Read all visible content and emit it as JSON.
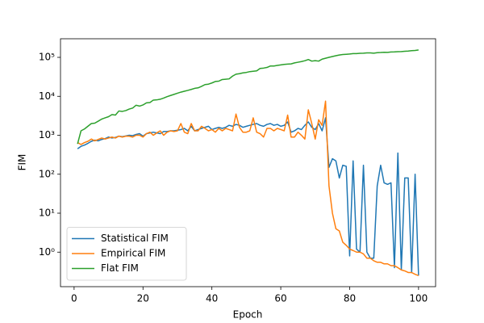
{
  "chart_data": {
    "type": "line",
    "xlabel": "Epoch",
    "ylabel": "FIM",
    "xlim": [
      -3.95,
      104.95
    ],
    "xticks": [
      0,
      20,
      40,
      60,
      80,
      100
    ],
    "ylim": [
      0.13,
      300000
    ],
    "yscale": "log",
    "yticks": [
      {
        "value": 1,
        "label": "10⁰"
      },
      {
        "value": 10,
        "label": "10¹"
      },
      {
        "value": 100,
        "label": "10²"
      },
      {
        "value": 1000,
        "label": "10³"
      },
      {
        "value": 10000,
        "label": "10⁴"
      },
      {
        "value": 100000,
        "label": "10⁵"
      }
    ],
    "grid": false,
    "legend": "lower left",
    "x": [
      1,
      2,
      3,
      4,
      5,
      6,
      7,
      8,
      9,
      10,
      11,
      12,
      13,
      14,
      15,
      16,
      17,
      18,
      19,
      20,
      21,
      22,
      23,
      24,
      25,
      26,
      27,
      28,
      29,
      30,
      31,
      32,
      33,
      34,
      35,
      36,
      37,
      38,
      39,
      40,
      41,
      42,
      43,
      44,
      45,
      46,
      47,
      48,
      49,
      50,
      51,
      52,
      53,
      54,
      55,
      56,
      57,
      58,
      59,
      60,
      61,
      62,
      63,
      64,
      65,
      66,
      67,
      68,
      69,
      70,
      71,
      72,
      73,
      74,
      75,
      76,
      77,
      78,
      79,
      80,
      81,
      82,
      83,
      84,
      85,
      86,
      87,
      88,
      89,
      90,
      91,
      92,
      93,
      94,
      95,
      96,
      97,
      98,
      99,
      100
    ],
    "series": [
      {
        "name": "Statistical FIM",
        "color": "#1f77b4",
        "values": [
          450,
          520,
          560,
          620,
          700,
          750,
          720,
          780,
          820,
          900,
          850,
          880,
          950,
          920,
          960,
          1000,
          980,
          1050,
          1100,
          950,
          1100,
          1150,
          1200,
          1150,
          1100,
          1250,
          1250,
          1300,
          1300,
          1350,
          1400,
          1500,
          1300,
          1700,
          1300,
          1400,
          1500,
          1600,
          1700,
          1400,
          1500,
          1600,
          1500,
          1600,
          1800,
          1700,
          1900,
          1800,
          1600,
          1700,
          1800,
          1900,
          2000,
          1800,
          1700,
          1900,
          2000,
          1800,
          1900,
          1700,
          1800,
          2200,
          1200,
          1300,
          1500,
          1400,
          1800,
          2200,
          1600,
          1400,
          2000,
          1300,
          2800,
          150,
          250,
          220,
          80,
          170,
          160,
          0.8,
          220,
          1.2,
          1,
          170,
          1,
          0.7,
          0.7,
          50,
          170,
          60,
          55,
          60,
          0.4,
          350,
          0.35,
          80,
          80,
          0.3,
          100,
          0.25
        ]
      },
      {
        "name": "Empirical FIM",
        "color": "#ff7f0e",
        "values": [
          650,
          580,
          650,
          700,
          800,
          720,
          780,
          850,
          800,
          850,
          900,
          850,
          950,
          900,
          950,
          950,
          900,
          1000,
          1000,
          900,
          1100,
          1200,
          1000,
          1150,
          1300,
          1000,
          1200,
          1300,
          1250,
          1300,
          2000,
          1200,
          1100,
          2000,
          1300,
          1300,
          1700,
          1500,
          1300,
          1400,
          1200,
          1500,
          1300,
          1500,
          1400,
          1300,
          3500,
          1600,
          1200,
          1200,
          1300,
          2800,
          1200,
          1100,
          900,
          1500,
          1500,
          1300,
          1500,
          1400,
          1300,
          3300,
          900,
          900,
          1200,
          1000,
          800,
          4500,
          2000,
          800,
          2500,
          1800,
          7500,
          50,
          10,
          4,
          3.5,
          1.8,
          1.5,
          1.2,
          1.1,
          1,
          1,
          0.9,
          0.7,
          0.7,
          0.6,
          0.55,
          0.55,
          0.5,
          0.5,
          0.45,
          0.45,
          0.4,
          0.35,
          0.33,
          0.3,
          0.3,
          0.27,
          0.25
        ]
      },
      {
        "name": "Flat FIM",
        "color": "#2ca02c",
        "values": [
          600,
          1300,
          1450,
          1700,
          2000,
          2050,
          2300,
          2600,
          2800,
          3000,
          3400,
          3300,
          4200,
          4100,
          4300,
          4700,
          5000,
          5900,
          5600,
          6000,
          6800,
          6900,
          8000,
          8100,
          8400,
          9000,
          9800,
          10500,
          11200,
          12000,
          12800,
          13500,
          14200,
          15000,
          16000,
          16500,
          18000,
          20000,
          20500,
          22000,
          24000,
          24500,
          27000,
          27500,
          28000,
          33000,
          37000,
          38000,
          40000,
          41000,
          43000,
          44000,
          45000,
          52000,
          53000,
          55000,
          60000,
          60000,
          62000,
          64000,
          66000,
          67000,
          68000,
          72000,
          75000,
          78000,
          82000,
          88000,
          80000,
          82000,
          80000,
          90000,
          95000,
          100000,
          105000,
          110000,
          115000,
          118000,
          120000,
          122000,
          125000,
          125000,
          127000,
          128000,
          130000,
          130000,
          128000,
          132000,
          133000,
          135000,
          134000,
          137000,
          138000,
          140000,
          141000,
          143000,
          145000,
          148000,
          150000,
          155000
        ]
      }
    ]
  }
}
